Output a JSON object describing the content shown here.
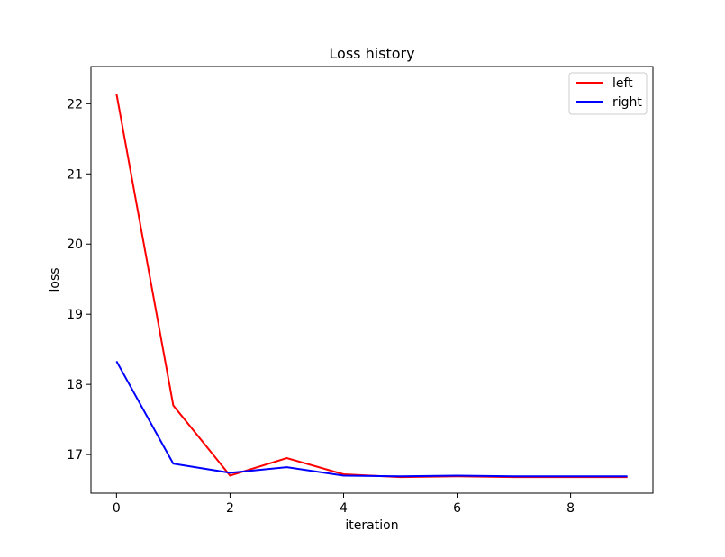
{
  "chart_data": {
    "type": "line",
    "title": "Loss history",
    "xlabel": "iteration",
    "ylabel": "loss",
    "x": [
      0,
      1,
      2,
      3,
      4,
      5,
      6,
      7,
      8,
      9
    ],
    "xlim": [
      -0.45,
      9.45
    ],
    "ylim": [
      16.45,
      22.53
    ],
    "xticks": [
      "0",
      "2",
      "4",
      "6",
      "8"
    ],
    "yticks": [
      "17",
      "18",
      "19",
      "20",
      "21",
      "22"
    ],
    "series": [
      {
        "name": "left",
        "color": "#ff0000",
        "values": [
          22.14,
          17.7,
          16.7,
          16.95,
          16.72,
          16.68,
          16.69,
          16.68,
          16.68,
          16.68
        ]
      },
      {
        "name": "right",
        "color": "#0000ff",
        "values": [
          18.33,
          16.87,
          16.74,
          16.82,
          16.7,
          16.69,
          16.7,
          16.69,
          16.69,
          16.69
        ]
      }
    ],
    "legend": "top-right",
    "grid": false
  }
}
